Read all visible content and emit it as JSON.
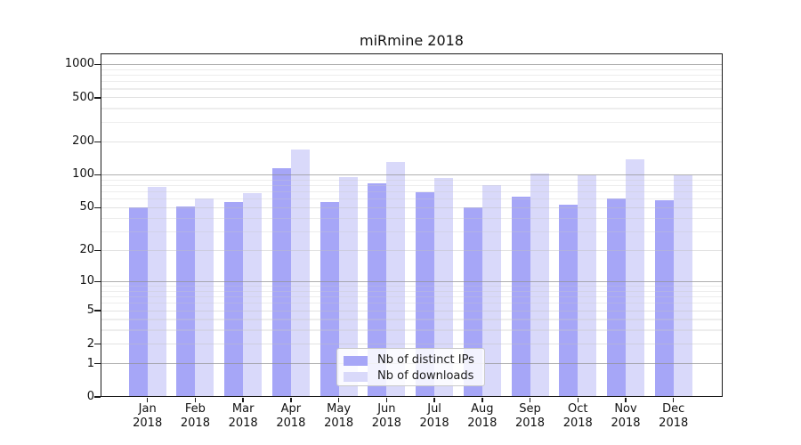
{
  "title": "miRmine 2018",
  "chart_data": {
    "type": "bar",
    "title": "miRmine 2018",
    "yscale": "log1p",
    "grid": true,
    "legend_position": "lower center",
    "categories": [
      "Jan 2018",
      "Feb 2018",
      "Mar 2018",
      "Apr 2018",
      "May 2018",
      "Jun 2018",
      "Jul 2018",
      "Aug 2018",
      "Sep 2018",
      "Oct 2018",
      "Nov 2018",
      "Dec 2018"
    ],
    "series": [
      {
        "name": "Nb of distinct IPs",
        "color": "#a6a6f7",
        "values": [
          50,
          51,
          56,
          115,
          56,
          83,
          70,
          50,
          63,
          53,
          61,
          59
        ]
      },
      {
        "name": "Nb of downloads",
        "color": "#d9d9fa",
        "values": [
          77,
          61,
          68,
          170,
          95,
          130,
          93,
          80,
          103,
          100,
          138,
          100
        ]
      }
    ],
    "yticks": [
      0,
      1,
      2,
      5,
      10,
      20,
      50,
      100,
      200,
      500,
      1000
    ],
    "ylim": [
      0,
      1260
    ],
    "xlabel": "",
    "ylabel": ""
  }
}
